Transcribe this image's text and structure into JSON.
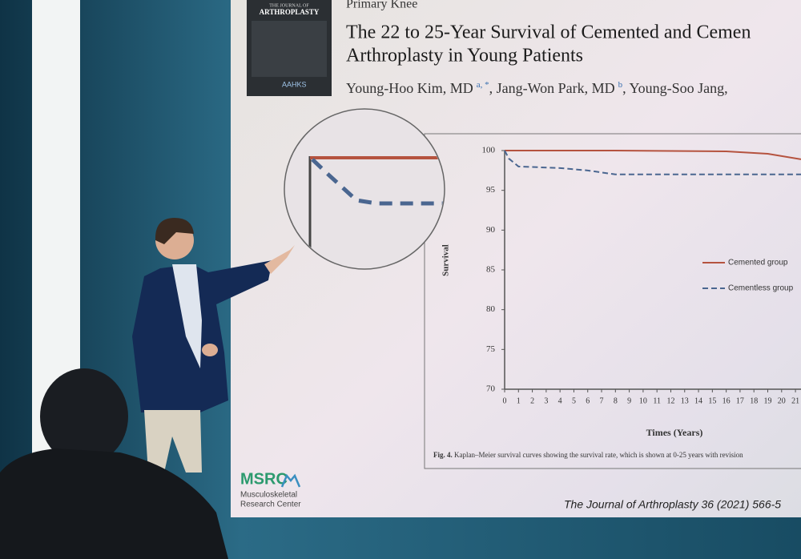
{
  "slide": {
    "journal_cover": {
      "kicker": "THE JOURNAL OF",
      "name": "ARTHROPLASTY",
      "society": "AAHKS"
    },
    "section": "Primary Knee",
    "title_lines": [
      "The 22 to 25-Year Survival of Cemented and Cemen",
      "Arthroplasty in Young Patients"
    ],
    "authors": [
      "Young-Hoo Kim, MD",
      "a, *",
      ", Jang-Won Park, MD",
      "b",
      ", Young-Soo Jang,"
    ],
    "caption_label": "Fig. 4.",
    "caption": "Kaplan–Meier survival curves showing the survival rate, which is shown at 0-25 years with revision",
    "logo": {
      "mark": "MSRC",
      "line1": "Musculoskeletal",
      "line2": "Research Center"
    },
    "citation": "The Journal of Arthroplasty 36 (2021) 566-5"
  },
  "chart_data": {
    "type": "line",
    "y_label": "Survival",
    "x_label": "Times (Years)",
    "x": [
      0,
      0.3,
      1,
      4,
      6,
      8,
      16,
      19,
      21.4
    ],
    "series": [
      {
        "name": "Cemented group",
        "color": "#b5533f",
        "linestyle": "solid",
        "values": [
          100,
          100,
          100,
          100,
          100,
          100,
          99.9,
          99.6,
          98.9
        ]
      },
      {
        "name": "Cementless group",
        "color": "#4a6690",
        "linestyle": "dashed",
        "values": [
          100,
          99,
          98,
          97.8,
          97.5,
          97,
          97,
          97,
          97
        ]
      }
    ],
    "xlim": [
      0,
      21.4
    ],
    "ylim": [
      70,
      100
    ],
    "xticks": [
      0,
      1,
      2,
      3,
      4,
      5,
      6,
      7,
      8,
      9,
      10,
      11,
      12,
      13,
      14,
      15,
      16,
      17,
      18,
      19,
      20,
      21
    ],
    "yticks": [
      70,
      75,
      80,
      85,
      90,
      95,
      100
    ],
    "grid": false
  }
}
